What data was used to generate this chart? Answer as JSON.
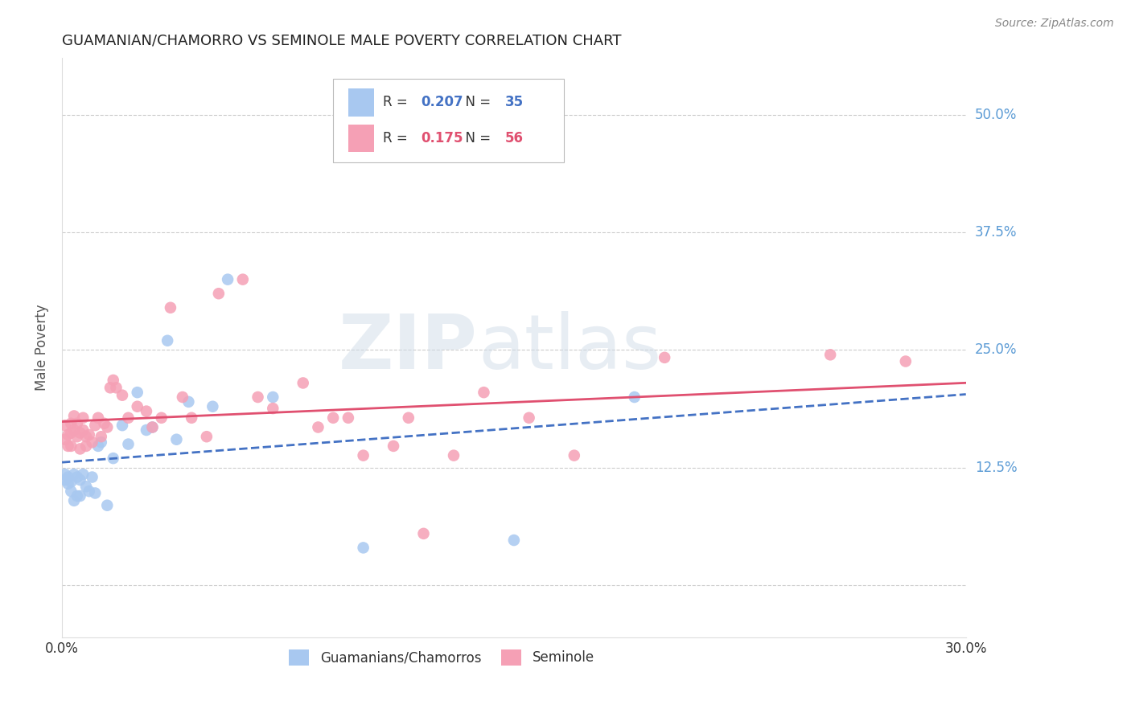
{
  "title": "GUAMANIAN/CHAMORRO VS SEMINOLE MALE POVERTY CORRELATION CHART",
  "source": "Source: ZipAtlas.com",
  "ylabel": "Male Poverty",
  "xlim": [
    0.0,
    0.3
  ],
  "ylim": [
    -0.055,
    0.56
  ],
  "yticks": [
    0.0,
    0.125,
    0.25,
    0.375,
    0.5
  ],
  "ytick_labels": [
    "",
    "12.5%",
    "25.0%",
    "37.5%",
    "50.0%"
  ],
  "xticks": [
    0.0,
    0.3
  ],
  "xtick_labels": [
    "0.0%",
    "30.0%"
  ],
  "grid_color": "#cccccc",
  "background_color": "#ffffff",
  "watermark_text": "ZIP",
  "watermark_text2": "atlas",
  "scatter_color_blue": "#a8c8f0",
  "scatter_color_pink": "#f5a0b5",
  "line_color_blue": "#4472c4",
  "line_color_pink": "#e05070",
  "series": [
    {
      "name": "Guamanians/Chamorros",
      "R": 0.207,
      "N": 35,
      "line_style": "--",
      "x": [
        0.001,
        0.001,
        0.002,
        0.002,
        0.003,
        0.003,
        0.004,
        0.004,
        0.005,
        0.005,
        0.006,
        0.006,
        0.007,
        0.008,
        0.009,
        0.01,
        0.011,
        0.012,
        0.013,
        0.015,
        0.017,
        0.02,
        0.022,
        0.025,
        0.028,
        0.03,
        0.035,
        0.038,
        0.042,
        0.05,
        0.055,
        0.07,
        0.1,
        0.15,
        0.19
      ],
      "y": [
        0.118,
        0.112,
        0.115,
        0.108,
        0.11,
        0.1,
        0.118,
        0.09,
        0.115,
        0.095,
        0.112,
        0.095,
        0.118,
        0.105,
        0.1,
        0.115,
        0.098,
        0.148,
        0.152,
        0.085,
        0.135,
        0.17,
        0.15,
        0.205,
        0.165,
        0.168,
        0.26,
        0.155,
        0.195,
        0.19,
        0.325,
        0.2,
        0.04,
        0.048,
        0.2
      ]
    },
    {
      "name": "Seminole",
      "R": 0.175,
      "N": 56,
      "line_style": "-",
      "x": [
        0.001,
        0.001,
        0.002,
        0.002,
        0.003,
        0.003,
        0.003,
        0.004,
        0.004,
        0.005,
        0.005,
        0.006,
        0.006,
        0.007,
        0.007,
        0.008,
        0.008,
        0.009,
        0.01,
        0.011,
        0.012,
        0.013,
        0.014,
        0.015,
        0.016,
        0.017,
        0.018,
        0.02,
        0.022,
        0.025,
        0.028,
        0.03,
        0.033,
        0.036,
        0.04,
        0.043,
        0.048,
        0.052,
        0.06,
        0.065,
        0.07,
        0.08,
        0.085,
        0.09,
        0.095,
        0.1,
        0.11,
        0.115,
        0.12,
        0.13,
        0.14,
        0.155,
        0.17,
        0.2,
        0.255,
        0.28
      ],
      "y": [
        0.155,
        0.17,
        0.16,
        0.148,
        0.172,
        0.162,
        0.148,
        0.18,
        0.165,
        0.172,
        0.158,
        0.162,
        0.145,
        0.178,
        0.165,
        0.158,
        0.148,
        0.16,
        0.152,
        0.17,
        0.178,
        0.158,
        0.172,
        0.168,
        0.21,
        0.218,
        0.21,
        0.202,
        0.178,
        0.19,
        0.185,
        0.168,
        0.178,
        0.295,
        0.2,
        0.178,
        0.158,
        0.31,
        0.325,
        0.2,
        0.188,
        0.215,
        0.168,
        0.178,
        0.178,
        0.138,
        0.148,
        0.178,
        0.055,
        0.138,
        0.205,
        0.178,
        0.138,
        0.242,
        0.245,
        0.238
      ]
    }
  ]
}
